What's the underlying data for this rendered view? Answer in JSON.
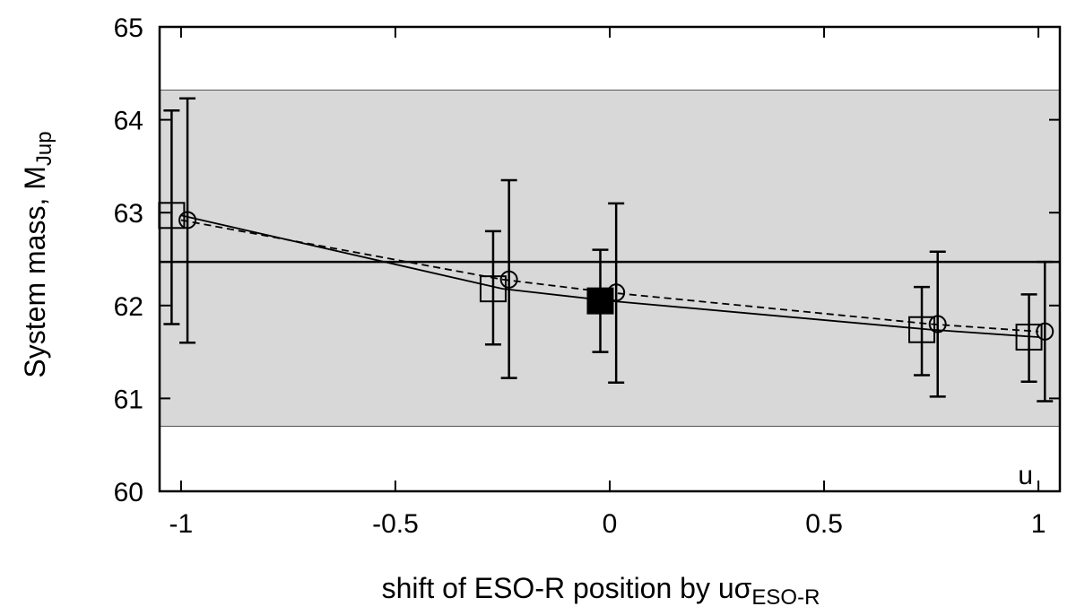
{
  "chart_data": {
    "type": "scatter",
    "title": "",
    "xlabel": {
      "main": "shift of ESO-R position by uσ",
      "sub": "ESO-R"
    },
    "ylabel": {
      "main": "System mass, M",
      "sub": "Jup"
    },
    "xlim": [
      -1.05,
      1.05
    ],
    "ylim": [
      60,
      65
    ],
    "xticks": [
      {
        "value": -1,
        "label": "-1"
      },
      {
        "value": -0.5,
        "label": "-0.5"
      },
      {
        "value": 0,
        "label": "0"
      },
      {
        "value": 0.5,
        "label": "0.5"
      },
      {
        "value": 1,
        "label": "1"
      }
    ],
    "yticks": [
      {
        "value": 60,
        "label": "60"
      },
      {
        "value": 61,
        "label": "61"
      },
      {
        "value": 62,
        "label": "62"
      },
      {
        "value": 63,
        "label": "63"
      },
      {
        "value": 64,
        "label": "64"
      },
      {
        "value": 65,
        "label": "65"
      }
    ],
    "grid": false,
    "annotation": "u",
    "band": {
      "y_low": 60.7,
      "y_high": 64.32,
      "color": "#d8d8d8"
    },
    "reference_line": {
      "y": 62.47
    },
    "series": [
      {
        "marker": "square",
        "line": "solid",
        "points": [
          {
            "x": -1.0,
            "y": 62.97,
            "err_low": 61.8,
            "err_high": 64.1
          },
          {
            "x": -0.25,
            "y": 62.18,
            "err_low": 61.58,
            "err_high": 62.8
          },
          {
            "x": 0.0,
            "y": 62.05,
            "err_low": 61.5,
            "err_high": 62.6,
            "filled": true
          },
          {
            "x": 0.75,
            "y": 61.74,
            "err_low": 61.25,
            "err_high": 62.2
          },
          {
            "x": 1.0,
            "y": 61.66,
            "err_low": 61.18,
            "err_high": 62.12
          }
        ]
      },
      {
        "marker": "circle",
        "line": "dashed",
        "points": [
          {
            "x": -1.0,
            "y": 62.92,
            "err_low": 61.6,
            "err_high": 64.23
          },
          {
            "x": -0.25,
            "y": 62.28,
            "err_low": 61.22,
            "err_high": 63.35
          },
          {
            "x": 0.0,
            "y": 62.14,
            "err_low": 61.17,
            "err_high": 63.1
          },
          {
            "x": 0.75,
            "y": 61.8,
            "err_low": 61.02,
            "err_high": 62.58
          },
          {
            "x": 1.0,
            "y": 61.72,
            "err_low": 60.97,
            "err_high": 62.47
          }
        ]
      }
    ]
  }
}
